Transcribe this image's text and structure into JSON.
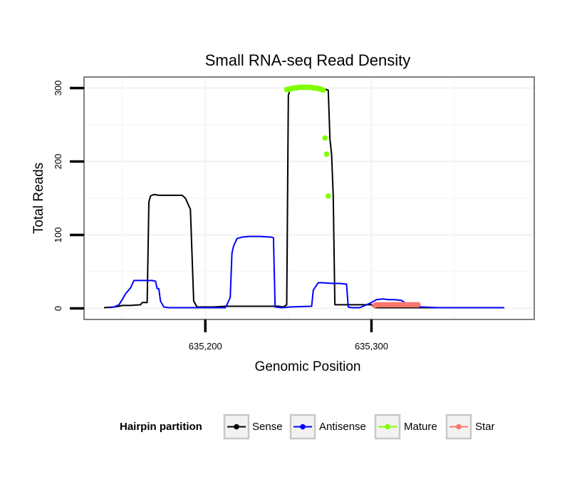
{
  "chart_data": {
    "type": "line",
    "title": "Small RNA-seq Read Density",
    "xlabel": "Genomic Position",
    "ylabel": "Total Reads",
    "xlim": [
      635127,
      635398
    ],
    "ylim": [
      -15,
      315
    ],
    "x_ticks": [
      635200,
      635300
    ],
    "x_tick_labels": [
      "635,200",
      "635,300"
    ],
    "y_ticks": [
      0,
      100,
      200,
      300
    ],
    "y_tick_labels": [
      "0",
      "100",
      "200",
      "300"
    ],
    "grid": true,
    "legend": {
      "title": "Hairpin partition",
      "position": "bottom",
      "entries": [
        "Sense",
        "Antisense",
        "Mature",
        "Star"
      ]
    },
    "series": [
      {
        "name": "Sense",
        "color": "#000000",
        "mode": "line",
        "points": [
          [
            635139,
            1
          ],
          [
            635145,
            2
          ],
          [
            635148,
            3
          ],
          [
            635150,
            4
          ],
          [
            635155,
            4
          ],
          [
            635161,
            5
          ],
          [
            635162,
            8
          ],
          [
            635165,
            8
          ],
          [
            635166,
            145
          ],
          [
            635167,
            153
          ],
          [
            635169,
            155
          ],
          [
            635172,
            154
          ],
          [
            635180,
            154
          ],
          [
            635186,
            154
          ],
          [
            635188,
            150
          ],
          [
            635190,
            140
          ],
          [
            635191,
            135
          ],
          [
            635193,
            10
          ],
          [
            635195,
            2
          ],
          [
            635205,
            2
          ],
          [
            635212,
            3
          ],
          [
            635225,
            3
          ],
          [
            635237,
            3
          ],
          [
            635244,
            3
          ],
          [
            635247,
            2
          ],
          [
            635249,
            5
          ],
          [
            635250,
            290
          ],
          [
            635251,
            298
          ],
          [
            635255,
            300
          ],
          [
            635262,
            301
          ],
          [
            635270,
            300
          ],
          [
            635274,
            297
          ],
          [
            635275,
            230
          ],
          [
            635276,
            210
          ],
          [
            635277,
            153
          ],
          [
            635278,
            5
          ],
          [
            635282,
            5
          ],
          [
            635300,
            5
          ],
          [
            635302,
            1
          ],
          [
            635309,
            1
          ],
          [
            635317,
            1
          ],
          [
            635322,
            1
          ],
          [
            635330,
            1
          ],
          [
            635340,
            1
          ],
          [
            635380,
            1
          ]
        ]
      },
      {
        "name": "Antisense",
        "color": "#0000ff",
        "mode": "line",
        "points": [
          [
            635142,
            1
          ],
          [
            635145,
            2
          ],
          [
            635148,
            5
          ],
          [
            635150,
            12
          ],
          [
            635152,
            20
          ],
          [
            635155,
            28
          ],
          [
            635157,
            38
          ],
          [
            635163,
            38
          ],
          [
            635168,
            38
          ],
          [
            635170,
            37
          ],
          [
            635171,
            27
          ],
          [
            635172,
            27
          ],
          [
            635173,
            10
          ],
          [
            635175,
            2
          ],
          [
            635178,
            1
          ],
          [
            635206,
            1
          ],
          [
            635212,
            1
          ],
          [
            635213,
            5
          ],
          [
            635215,
            15
          ],
          [
            635216,
            75
          ],
          [
            635217,
            85
          ],
          [
            635219,
            95
          ],
          [
            635222,
            97
          ],
          [
            635226,
            98
          ],
          [
            635233,
            98
          ],
          [
            635240,
            97
          ],
          [
            635241,
            96
          ],
          [
            635242,
            2
          ],
          [
            635246,
            1
          ],
          [
            635251,
            2
          ],
          [
            635264,
            3
          ],
          [
            635265,
            25
          ],
          [
            635268,
            35
          ],
          [
            635270,
            35
          ],
          [
            635277,
            34
          ],
          [
            635281,
            34
          ],
          [
            635285,
            33
          ],
          [
            635286,
            2
          ],
          [
            635288,
            1
          ],
          [
            635293,
            1
          ],
          [
            635295,
            3
          ],
          [
            635300,
            8
          ],
          [
            635303,
            12
          ],
          [
            635307,
            13
          ],
          [
            635310,
            12
          ],
          [
            635314,
            12
          ],
          [
            635318,
            11
          ],
          [
            635320,
            8
          ],
          [
            635325,
            3
          ],
          [
            635330,
            2
          ],
          [
            635340,
            1
          ],
          [
            635380,
            1
          ]
        ]
      },
      {
        "name": "Mature",
        "color": "#7fff00",
        "mode": "points",
        "points": [
          [
            635249,
            298
          ],
          [
            635250,
            298
          ],
          [
            635251,
            299
          ],
          [
            635252,
            299
          ],
          [
            635253,
            300
          ],
          [
            635254,
            300
          ],
          [
            635255,
            300
          ],
          [
            635256,
            301
          ],
          [
            635257,
            301
          ],
          [
            635258,
            301
          ],
          [
            635259,
            301
          ],
          [
            635260,
            301
          ],
          [
            635261,
            301
          ],
          [
            635262,
            301
          ],
          [
            635263,
            301
          ],
          [
            635264,
            301
          ],
          [
            635265,
            300
          ],
          [
            635266,
            300
          ],
          [
            635267,
            300
          ],
          [
            635268,
            299
          ],
          [
            635269,
            299
          ],
          [
            635270,
            298
          ],
          [
            635271,
            297
          ],
          [
            635272,
            232
          ],
          [
            635273,
            210
          ],
          [
            635274,
            153
          ]
        ]
      },
      {
        "name": "Star",
        "color": "#f8766d",
        "mode": "points",
        "points": [
          [
            635302,
            4
          ],
          [
            635303,
            5
          ],
          [
            635304,
            5
          ],
          [
            635305,
            5
          ],
          [
            635306,
            5
          ],
          [
            635307,
            5
          ],
          [
            635308,
            5
          ],
          [
            635309,
            5
          ],
          [
            635310,
            5
          ],
          [
            635311,
            5
          ],
          [
            635312,
            5
          ],
          [
            635313,
            5
          ],
          [
            635314,
            5
          ],
          [
            635315,
            5
          ],
          [
            635316,
            5
          ],
          [
            635317,
            5
          ],
          [
            635318,
            5
          ],
          [
            635319,
            5
          ],
          [
            635320,
            5
          ],
          [
            635321,
            5
          ],
          [
            635322,
            5
          ],
          [
            635323,
            5
          ],
          [
            635324,
            5
          ],
          [
            635325,
            5
          ],
          [
            635326,
            5
          ],
          [
            635327,
            5
          ],
          [
            635328,
            5
          ]
        ]
      }
    ]
  }
}
